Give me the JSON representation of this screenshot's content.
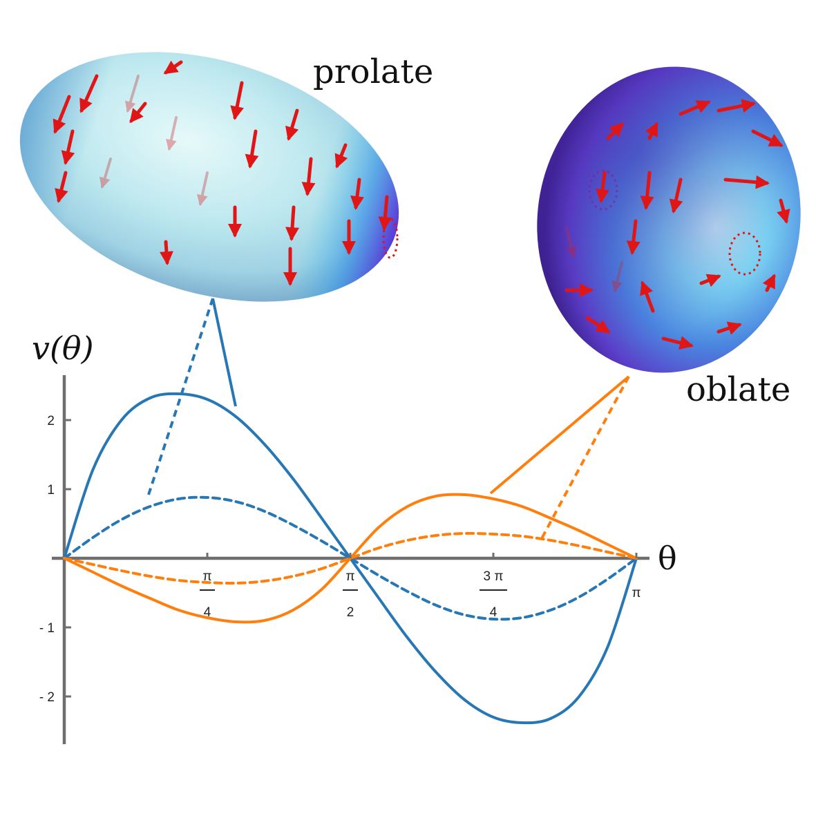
{
  "labels": {
    "prolate": "prolate",
    "oblate": "oblate"
  },
  "colors": {
    "blue": "#2877b5",
    "orange": "#ff7f0e",
    "axis": "#6e6e6e",
    "arrow": "#e01616"
  },
  "icons": {
    "prolate_shape": "prolate-spheroid-icon",
    "oblate_shape": "oblate-spheroid-icon"
  },
  "chart_data": {
    "type": "line",
    "xlabel": "θ",
    "ylabel": "v(θ)",
    "xlim": [
      0,
      3.14159
    ],
    "ylim": [
      -2.65,
      2.65
    ],
    "grid": false,
    "legend": "none",
    "x_ticks": [
      {
        "value": 0.7854,
        "num": "π",
        "den": "4"
      },
      {
        "value": 1.5708,
        "num": "π",
        "den": "2"
      },
      {
        "value": 2.3562,
        "num": "3 π",
        "den": "4"
      },
      {
        "value": 3.14159,
        "label": "π"
      }
    ],
    "y_ticks": [
      {
        "value": 2,
        "label": "2"
      },
      {
        "value": 1,
        "label": "1"
      },
      {
        "value": -1,
        "label": "- 1"
      },
      {
        "value": -2,
        "label": "- 2"
      }
    ],
    "series": [
      {
        "color": "#2877b5",
        "style": "solid",
        "x": [
          0,
          0.1571,
          0.3142,
          0.4712,
          0.6283,
          0.7854,
          0.9425,
          1.0996,
          1.2566,
          1.4137,
          1.5708,
          1.7279,
          1.885,
          2.042,
          2.1991,
          2.3562,
          2.5133,
          2.6704,
          2.8274,
          2.9845,
          3.1416
        ],
        "y": [
          0,
          1.28,
          2.0,
          2.32,
          2.38,
          2.3,
          2.05,
          1.65,
          1.15,
          0.58,
          0,
          -0.58,
          -1.15,
          -1.65,
          -2.05,
          -2.3,
          -2.38,
          -2.32,
          -2.0,
          -1.28,
          0
        ]
      },
      {
        "color": "#2877b5",
        "style": "dashed",
        "x": [
          0,
          0.1571,
          0.3142,
          0.4712,
          0.6283,
          0.7854,
          0.9425,
          1.0996,
          1.2566,
          1.4137,
          1.5708,
          1.7279,
          1.885,
          2.042,
          2.1991,
          2.3562,
          2.5133,
          2.6704,
          2.8274,
          2.9845,
          3.1416
        ],
        "y": [
          0,
          0.3,
          0.56,
          0.75,
          0.86,
          0.88,
          0.82,
          0.68,
          0.48,
          0.25,
          0,
          -0.25,
          -0.48,
          -0.68,
          -0.82,
          -0.88,
          -0.86,
          -0.75,
          -0.56,
          -0.3,
          0
        ]
      },
      {
        "color": "#ff7f0e",
        "style": "solid",
        "x": [
          0,
          0.1571,
          0.3142,
          0.4712,
          0.6283,
          0.7854,
          0.9425,
          1.0996,
          1.2566,
          1.4137,
          1.5708,
          1.7279,
          1.885,
          2.042,
          2.1991,
          2.3562,
          2.5133,
          2.6704,
          2.8274,
          2.9845,
          3.1416
        ],
        "y": [
          0,
          -0.2,
          -0.4,
          -0.58,
          -0.75,
          -0.86,
          -0.92,
          -0.9,
          -0.75,
          -0.45,
          0,
          0.45,
          0.75,
          0.9,
          0.92,
          0.86,
          0.75,
          0.58,
          0.4,
          0.2,
          0
        ]
      },
      {
        "color": "#ff7f0e",
        "style": "dashed",
        "x": [
          0,
          0.1571,
          0.3142,
          0.4712,
          0.6283,
          0.7854,
          0.9425,
          1.0996,
          1.2566,
          1.4137,
          1.5708,
          1.7279,
          1.885,
          2.042,
          2.1991,
          2.3562,
          2.5133,
          2.6704,
          2.8274,
          2.9845,
          3.1416
        ],
        "y": [
          0,
          -0.09,
          -0.18,
          -0.26,
          -0.32,
          -0.35,
          -0.36,
          -0.33,
          -0.26,
          -0.15,
          0,
          0.15,
          0.26,
          0.33,
          0.36,
          0.35,
          0.32,
          0.26,
          0.18,
          0.09,
          0
        ]
      }
    ]
  }
}
